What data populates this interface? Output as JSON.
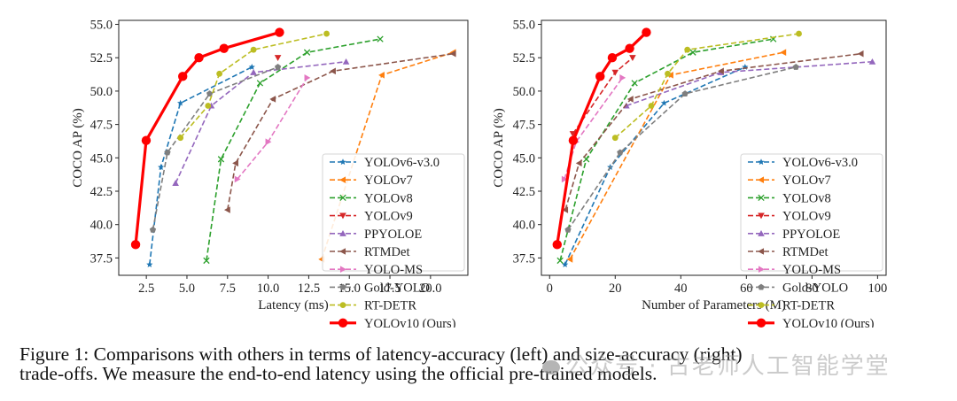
{
  "caption": {
    "line1": "Figure 1: Comparisons with others in terms of latency-accuracy (left) and size-accuracy (right)",
    "line2": "trade-offs. We measure the end-to-end latency using the official pre-trained models."
  },
  "watermark": "公众号 · 古老师人工智能学堂",
  "chart_data": [
    {
      "type": "line",
      "title": "",
      "xlabel": "Latency (ms)",
      "ylabel": "COCO AP (%)",
      "xlim": [
        0.8,
        22.3
      ],
      "ylim": [
        36.2,
        55.3
      ],
      "xticks": [
        2.5,
        5.0,
        7.5,
        10.0,
        12.5,
        15.0,
        17.5,
        20.0
      ],
      "xtick_labels": [
        "2.5",
        "5.0",
        "7.5",
        "10.0",
        "12.5",
        "15.0",
        "17.5",
        "20.0"
      ],
      "yticks": [
        37.5,
        40.0,
        42.5,
        45.0,
        47.5,
        50.0,
        52.5,
        55.0
      ],
      "ytick_labels": [
        "37.5",
        "40.0",
        "42.5",
        "45.0",
        "47.5",
        "50.0",
        "52.5",
        "55.0"
      ],
      "grid": false,
      "legend_position": "lower-right",
      "series": [
        {
          "name": "YOLOv6-v3.0",
          "color": "#1f77b4",
          "marker": "star",
          "style": "dashed",
          "x": [
            2.7,
            3.4,
            4.6,
            9.0
          ],
          "y": [
            37.0,
            44.3,
            49.1,
            51.8
          ]
        },
        {
          "name": "YOLOv7",
          "color": "#ff7f0e",
          "marker": "tri-left",
          "style": "dashed",
          "x": [
            13.3,
            17.0,
            21.4
          ],
          "y": [
            37.4,
            51.2,
            52.9
          ]
        },
        {
          "name": "YOLOv8",
          "color": "#2ca02c",
          "marker": "x",
          "style": "dashed",
          "x": [
            6.2,
            7.1,
            9.5,
            12.4,
            16.9
          ],
          "y": [
            37.3,
            44.9,
            50.6,
            52.9,
            53.9
          ]
        },
        {
          "name": "YOLOv9",
          "color": "#d62728",
          "marker": "tri-down",
          "style": "dashed",
          "x": [
            10.6
          ],
          "y": [
            52.5
          ]
        },
        {
          "name": "PPYOLOE",
          "color": "#9467bd",
          "marker": "tri-up",
          "style": "dashed",
          "x": [
            4.3,
            6.5,
            9.1,
            14.8
          ],
          "y": [
            43.1,
            48.9,
            51.4,
            52.2
          ]
        },
        {
          "name": "RTMDet",
          "color": "#8c564b",
          "marker": "tri-left",
          "style": "dashed",
          "x": [
            7.5,
            8.0,
            10.3,
            14.0,
            21.4
          ],
          "y": [
            41.1,
            44.6,
            49.4,
            51.5,
            52.8
          ]
        },
        {
          "name": "YOLO-MS",
          "color": "#e377c2",
          "marker": "tri-right",
          "style": "dashed",
          "x": [
            8.1,
            10.0,
            12.4
          ],
          "y": [
            43.4,
            46.2,
            51.0
          ]
        },
        {
          "name": "Gold-YOLO",
          "color": "#7f7f7f",
          "marker": "pentagon",
          "style": "dashed",
          "x": [
            2.9,
            3.8,
            6.4,
            10.6
          ],
          "y": [
            39.6,
            45.4,
            49.8,
            51.8
          ]
        },
        {
          "name": "RT-DETR",
          "color": "#bcbd22",
          "marker": "circle",
          "style": "dashed",
          "x": [
            4.6,
            6.3,
            7.0,
            9.1,
            13.6
          ],
          "y": [
            46.5,
            48.9,
            51.3,
            53.1,
            54.3
          ]
        },
        {
          "name": "YOLOv10 (Ours)",
          "color": "#ff0000",
          "marker": "circle",
          "style": "solid",
          "x": [
            1.84,
            2.49,
            4.74,
            5.74,
            7.28,
            10.7
          ],
          "y": [
            38.5,
            46.3,
            51.1,
            52.5,
            53.2,
            54.4
          ]
        }
      ]
    },
    {
      "type": "line",
      "title": "",
      "xlabel": "Number of Parameters (M)",
      "ylabel": "COCO AP (%)",
      "xlim": [
        -2.5,
        102.6
      ],
      "ylim": [
        36.2,
        55.3
      ],
      "xticks": [
        0,
        20,
        40,
        60,
        80,
        100
      ],
      "xtick_labels": [
        "0",
        "20",
        "40",
        "60",
        "80",
        "100"
      ],
      "yticks": [
        37.5,
        40.0,
        42.5,
        45.0,
        47.5,
        50.0,
        52.5,
        55.0
      ],
      "ytick_labels": [
        "37.5",
        "40.0",
        "42.5",
        "45.0",
        "47.5",
        "50.0",
        "52.5",
        "55.0"
      ],
      "grid": false,
      "legend_position": "lower-right",
      "series": [
        {
          "name": "YOLOv6-v3.0",
          "color": "#1f77b4",
          "marker": "star",
          "style": "dashed",
          "x": [
            4.7,
            18.5,
            34.9,
            59.6
          ],
          "y": [
            37.0,
            44.3,
            49.1,
            51.8
          ]
        },
        {
          "name": "YOLOv7",
          "color": "#ff7f0e",
          "marker": "tri-left",
          "style": "dashed",
          "x": [
            6.2,
            36.9,
            71.3
          ],
          "y": [
            37.4,
            51.2,
            52.9
          ]
        },
        {
          "name": "YOLOv8",
          "color": "#2ca02c",
          "marker": "x",
          "style": "dashed",
          "x": [
            3.2,
            11.2,
            25.9,
            43.7,
            68.2
          ],
          "y": [
            37.3,
            44.9,
            50.6,
            52.9,
            53.9
          ]
        },
        {
          "name": "YOLOv9",
          "color": "#d62728",
          "marker": "tri-down",
          "style": "dashed",
          "x": [
            7.1,
            20.0,
            25.3
          ],
          "y": [
            46.8,
            51.4,
            52.5
          ]
        },
        {
          "name": "PPYOLOE",
          "color": "#9467bd",
          "marker": "tri-up",
          "style": "dashed",
          "x": [
            23.4,
            52.2,
            98.4
          ],
          "y": [
            48.9,
            51.4,
            52.2
          ]
        },
        {
          "name": "RTMDet",
          "color": "#8c564b",
          "marker": "tri-left",
          "style": "dashed",
          "x": [
            4.8,
            9.0,
            24.7,
            52.3,
            94.9
          ],
          "y": [
            41.1,
            44.6,
            49.4,
            51.5,
            52.8
          ]
        },
        {
          "name": "YOLO-MS",
          "color": "#e377c2",
          "marker": "tri-right",
          "style": "dashed",
          "x": [
            4.5,
            8.1,
            22.2
          ],
          "y": [
            43.4,
            46.2,
            51.0
          ]
        },
        {
          "name": "Gold-YOLO",
          "color": "#7f7f7f",
          "marker": "pentagon",
          "style": "dashed",
          "x": [
            5.6,
            21.5,
            41.3,
            75.1
          ],
          "y": [
            39.6,
            45.4,
            49.8,
            51.8
          ]
        },
        {
          "name": "RT-DETR",
          "color": "#bcbd22",
          "marker": "circle",
          "style": "dashed",
          "x": [
            20.0,
            31.0,
            36.0,
            42.0,
            76.0
          ],
          "y": [
            46.5,
            48.9,
            51.3,
            53.1,
            54.3
          ]
        },
        {
          "name": "YOLOv10 (Ours)",
          "color": "#ff0000",
          "marker": "circle",
          "style": "solid",
          "x": [
            2.3,
            7.2,
            15.4,
            19.1,
            24.4,
            29.5
          ],
          "y": [
            38.5,
            46.3,
            51.1,
            52.5,
            53.2,
            54.4
          ]
        }
      ]
    }
  ]
}
